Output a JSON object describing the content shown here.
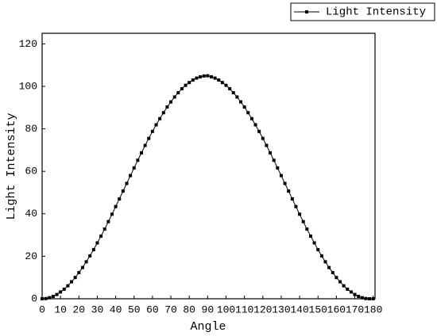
{
  "chart_data": {
    "type": "line",
    "xlabel": "Angle",
    "ylabel": "Light Intensity",
    "x": [
      0,
      2,
      4,
      6,
      8,
      10,
      12,
      14,
      16,
      18,
      20,
      22,
      24,
      26,
      28,
      30,
      32,
      34,
      36,
      38,
      40,
      42,
      44,
      46,
      48,
      50,
      52,
      54,
      56,
      58,
      60,
      62,
      64,
      66,
      68,
      70,
      72,
      74,
      76,
      78,
      80,
      82,
      84,
      86,
      88,
      90,
      92,
      94,
      96,
      98,
      100,
      102,
      104,
      106,
      108,
      110,
      112,
      114,
      116,
      118,
      120,
      122,
      124,
      126,
      128,
      130,
      132,
      134,
      136,
      138,
      140,
      142,
      144,
      146,
      148,
      150,
      152,
      154,
      156,
      158,
      160,
      162,
      164,
      166,
      168,
      170,
      172,
      174,
      176,
      178,
      180
    ],
    "series": [
      {
        "name": "Light Intensity",
        "color": "#000000",
        "values": [
          0,
          0.1,
          0.5,
          1.1,
          2,
          3.2,
          4.5,
          6.1,
          8,
          10,
          12.3,
          14.7,
          17.4,
          20.2,
          23.1,
          26.3,
          29.5,
          32.8,
          36.3,
          39.8,
          43.4,
          47,
          50.7,
          54.3,
          58,
          61.6,
          65.2,
          68.7,
          72.2,
          75.5,
          78.8,
          81.9,
          84.8,
          87.6,
          90.3,
          92.7,
          95,
          97,
          98.9,
          100.5,
          101.8,
          103,
          103.9,
          104.5,
          104.9,
          105,
          104.5,
          103.9,
          103,
          101.8,
          100.5,
          98.9,
          97,
          95,
          92.7,
          90.3,
          87.6,
          84.8,
          81.9,
          78.8,
          75.5,
          72.2,
          68.7,
          65.2,
          61.6,
          58,
          54.3,
          50.7,
          47,
          43.4,
          39.8,
          36.3,
          32.8,
          29.5,
          26.3,
          23.1,
          20.2,
          17.4,
          14.7,
          12.3,
          10,
          8,
          6.1,
          4.5,
          3.2,
          2,
          1.1,
          0.5,
          0.1,
          0,
          0
        ]
      }
    ],
    "xlim": [
      0,
      181
    ],
    "xticks": [
      0,
      10,
      20,
      30,
      40,
      50,
      60,
      70,
      80,
      90,
      100,
      110,
      120,
      130,
      140,
      150,
      160,
      170,
      180
    ],
    "ylim": [
      0,
      125
    ],
    "yticks": [
      0,
      20,
      40,
      60,
      80,
      100,
      120
    ],
    "legend": "top-right"
  }
}
